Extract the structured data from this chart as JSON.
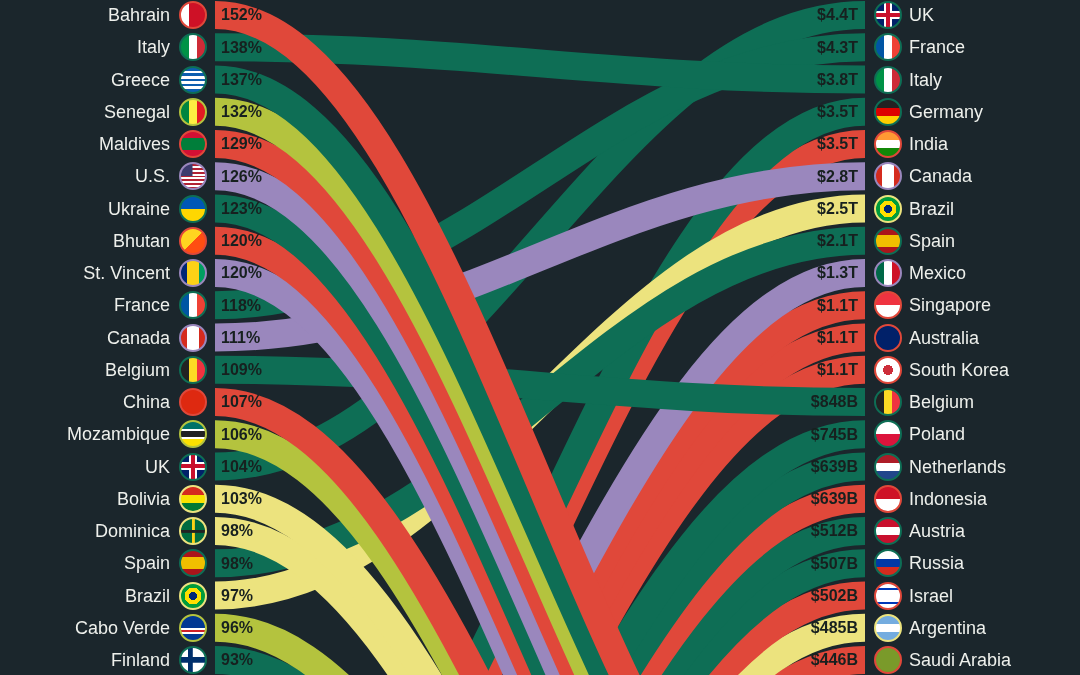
{
  "chart_data": {
    "type": "other",
    "categories": [
      "Bahrain",
      "Italy",
      "Greece",
      "Senegal",
      "Maldives",
      "U.S.",
      "Ukraine",
      "Bhutan",
      "St. Vincent",
      "France",
      "Canada",
      "Belgium",
      "China",
      "Mozambique",
      "UK",
      "Bolivia",
      "Dominica",
      "Spain",
      "Brazil",
      "Cabo Verde",
      "Finland",
      "Germany",
      "India",
      "Mexico",
      "Singapore",
      "Australia",
      "South Korea",
      "Poland",
      "Netherlands",
      "Indonesia",
      "Austria",
      "Russia",
      "Israel",
      "Argentina",
      "Saudi Arabia"
    ],
    "colors": [
      "#e0483a",
      "#0e6e55",
      "#0e6e55",
      "#b4c33e",
      "#e0483a",
      "#9a87bd",
      "#0e6e55",
      "#e0483a",
      "#9a87bd",
      "#0e6e55",
      "#9a87bd",
      "#0e6e55",
      "#e0483a",
      "#b4c33e",
      "#0e6e55",
      "#ece37e",
      "#ece37e",
      "#0e6e55",
      "#ece37e",
      "#b4c33e",
      "#0e6e55",
      "#0e6e55",
      "#e0483a",
      "#9a87bd",
      "#e0483a",
      "#e0483a",
      "#e0483a",
      "#0e6e55",
      "#0e6e55",
      "#e0483a",
      "#0e6e55",
      "#0e6e55",
      "#e0483a",
      "#ece37e",
      "#e0483a"
    ],
    "series": [
      {
        "values": [
          152,
          138,
          137,
          132,
          129,
          126,
          123,
          120,
          120,
          118,
          111,
          109,
          107,
          106,
          104,
          103,
          98,
          98,
          97,
          96,
          93,
          null,
          null,
          null,
          null,
          null,
          null,
          null,
          null,
          null,
          null,
          null,
          null,
          null,
          null
        ],
        "value_labels": [
          "152%",
          "138%",
          "137%",
          "132%",
          "129%",
          "126%",
          "123%",
          "120%",
          "120%",
          "118%",
          "111%",
          "109%",
          "107%",
          "106%",
          "104%",
          "103%",
          "98%",
          "98%",
          "97%",
          "96%",
          "93%",
          null,
          null,
          null,
          null,
          null,
          null,
          null,
          null,
          null,
          null,
          null,
          null,
          null,
          null
        ]
      },
      {
        "values": [
          null,
          3800000000000.0,
          null,
          null,
          null,
          null,
          null,
          null,
          null,
          4300000000000.0,
          2800000000000.0,
          848000000000.0,
          null,
          null,
          4400000000000.0,
          null,
          null,
          2100000000000.0,
          2500000000000.0,
          null,
          null,
          3500000000000.0,
          3500000000000.0,
          1300000000000.0,
          1100000000000.0,
          1100000000000.0,
          1100000000000.0,
          745000000000.0,
          639000000000.0,
          639000000000.0,
          512000000000.0,
          507000000000.0,
          502000000000.0,
          485000000000.0,
          446000000000.0
        ],
        "value_labels": [
          null,
          "$3.8T",
          null,
          null,
          null,
          null,
          null,
          null,
          null,
          "$4.3T",
          "$2.8T",
          "$848B",
          null,
          null,
          "$4.4T",
          null,
          null,
          "$2.1T",
          "$2.5T",
          null,
          null,
          "$3.5T",
          "$3.5T",
          "$1.3T",
          "$1.1T",
          "$1.1T",
          "$1.1T",
          "$745B",
          "$639B",
          "$639B",
          "$512B",
          "$507B",
          "$502B",
          "$485B",
          "$446B"
        ]
      }
    ]
  }
}
